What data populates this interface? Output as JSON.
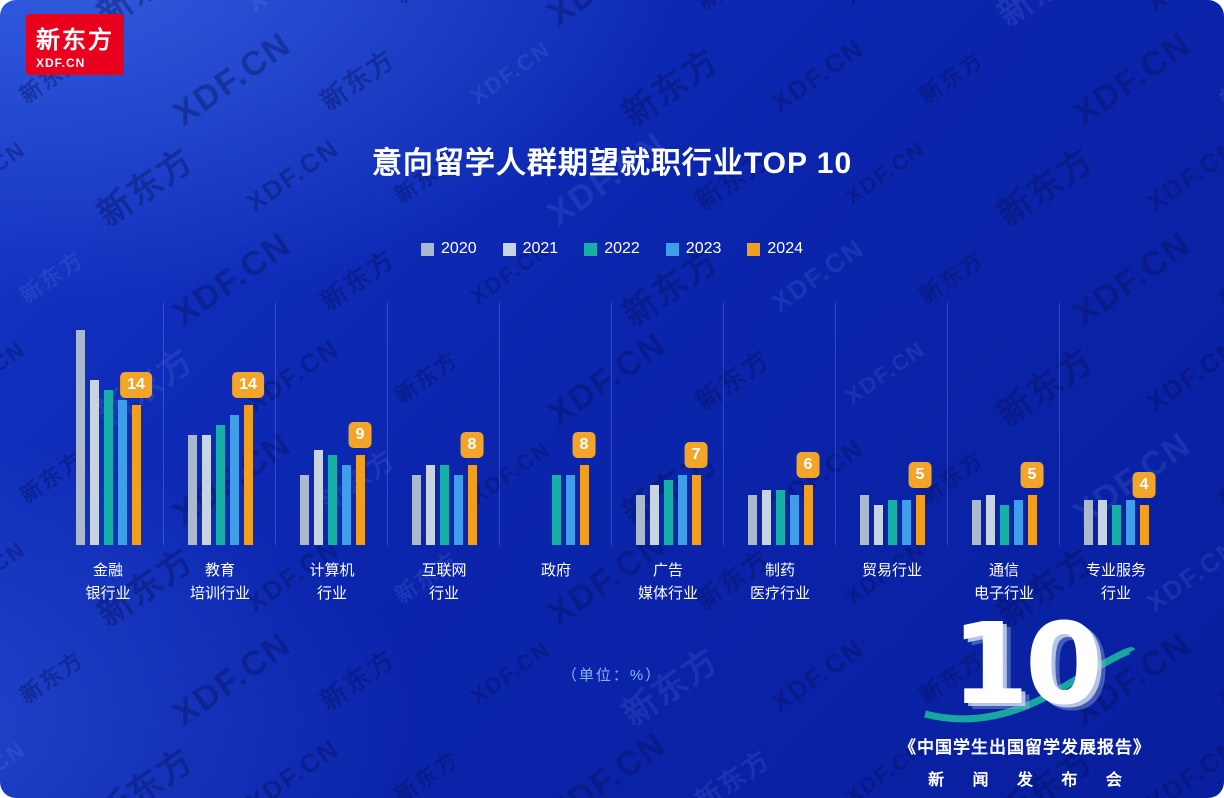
{
  "logo": {
    "text": "新东方",
    "domain": "XDF.CN"
  },
  "chart_data": {
    "type": "bar",
    "title": "意向留学人群期望就职行业TOP 10",
    "unit": "%",
    "categories": [
      "金融\n银行业",
      "教育\n培训行业",
      "计算机\n行业",
      "互联网\n行业",
      "政府",
      "广告\n媒体行业",
      "制药\n医疗行业",
      "贸易行业",
      "通信\n电子行业",
      "专业服务\n行业"
    ],
    "series": [
      {
        "name": "2020",
        "color": "#aab9cf",
        "values": [
          21.5,
          11,
          7,
          7,
          null,
          5,
          5,
          5,
          4.5,
          4.5
        ]
      },
      {
        "name": "2021",
        "color": "#c9d4e2",
        "values": [
          16.5,
          11,
          9.5,
          8,
          null,
          6,
          5.5,
          4,
          5,
          4.5
        ]
      },
      {
        "name": "2022",
        "color": "#17b0a7",
        "values": [
          15.5,
          12,
          9,
          8,
          7,
          6.5,
          5.5,
          4.5,
          4,
          4
        ]
      },
      {
        "name": "2023",
        "color": "#3e9fe8",
        "values": [
          14.5,
          13,
          8,
          7,
          7,
          7,
          5,
          4.5,
          4.5,
          4.5
        ]
      },
      {
        "name": "2024",
        "color": "#f09f1f",
        "values": [
          14,
          14,
          9,
          8,
          8,
          7,
          6,
          5,
          5,
          4
        ]
      }
    ],
    "data_labels": [
      14,
      14,
      9,
      8,
      8,
      7,
      6,
      5,
      5,
      4
    ],
    "legend_position": "top",
    "ylim": [
      0,
      22
    ],
    "grid": false
  },
  "footer": {
    "unit_note": "（单位：%）",
    "big_number": "10",
    "report_title": "《中国学生出国留学发展报告》",
    "press_release": "新 闻 发 布 会"
  },
  "watermarks": {
    "texts": [
      "XDF.CN",
      "新东方"
    ],
    "accent_color": "#1ab5a0"
  },
  "colors": {
    "background": "#0b25ad",
    "badge": "#f3a52a",
    "title": "#ffffff"
  }
}
